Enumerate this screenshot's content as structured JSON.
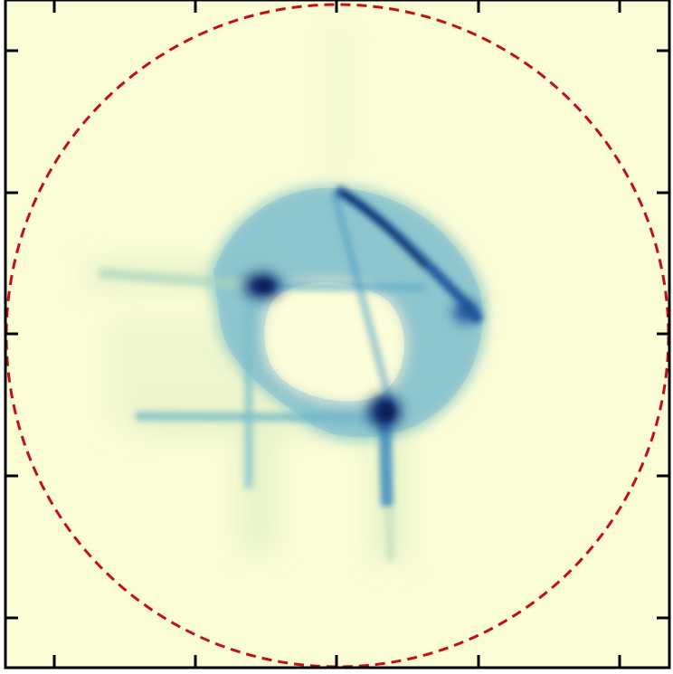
{
  "image": {
    "kind": "intensity map",
    "colormap": [
      "#fbfcd8",
      "#eef5c4",
      "#b9dfb6",
      "#5eb3cc",
      "#2c7fb8",
      "#1b4f98",
      "#081d58"
    ],
    "background_color": "#fafcd6",
    "boundary_circle": {
      "style": "dashed",
      "color": "#c40f12"
    },
    "tick_marks": {
      "x_count": 5,
      "y_count": 5,
      "labels_visible": false
    },
    "frame_color": "#000000"
  }
}
